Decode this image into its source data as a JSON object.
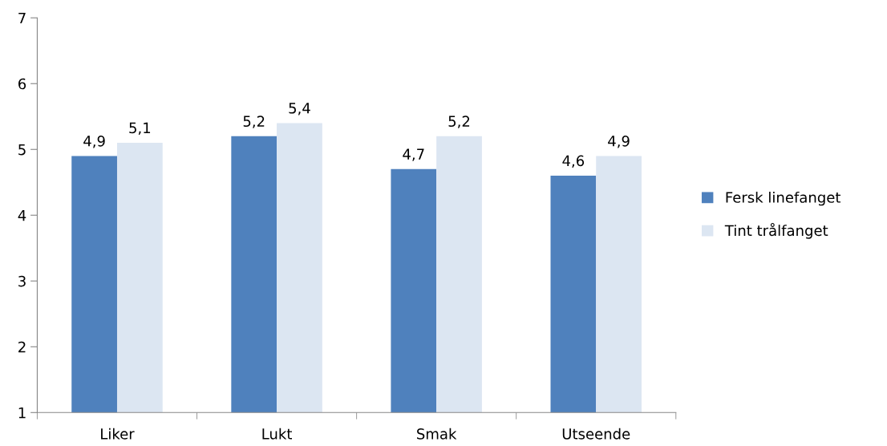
{
  "chart_data": {
    "type": "bar",
    "categories": [
      "Liker",
      "Lukt",
      "Smak",
      "Utseende"
    ],
    "series": [
      {
        "name": "Fersk linefanget",
        "color": "#4f81bd",
        "values": [
          4.9,
          5.2,
          4.7,
          4.6
        ],
        "value_labels": [
          "4,9",
          "5,2",
          "4,7",
          "4,6"
        ]
      },
      {
        "name": "Tint trålfanget",
        "color": "#dce6f2",
        "values": [
          5.1,
          5.4,
          5.2,
          4.9
        ],
        "value_labels": [
          "5,1",
          "5,4",
          "5,2",
          "4,9"
        ]
      }
    ],
    "ylim": [
      1,
      7
    ],
    "yticks": [
      1,
      2,
      3,
      4,
      5,
      6,
      7
    ],
    "grid": false,
    "legend": "right"
  }
}
